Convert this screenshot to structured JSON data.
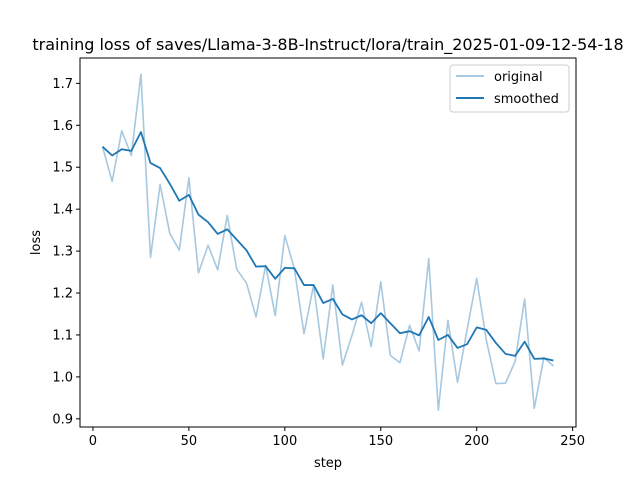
{
  "chart_data": {
    "type": "line",
    "title": "training loss of saves/Llama-3-8B-Instruct/lora/train_2025-01-09-12-54-18",
    "xlabel": "step",
    "ylabel": "loss",
    "xlim": [
      -6.75,
      251.75
    ],
    "ylim": [
      0.8805,
      1.7605
    ],
    "xticks": [
      0,
      50,
      100,
      150,
      200,
      250
    ],
    "yticks": [
      0.9,
      1.0,
      1.1,
      1.2,
      1.3,
      1.4,
      1.5,
      1.6,
      1.7
    ],
    "ytick_labels": [
      "0.9",
      "1.0",
      "1.1",
      "1.2",
      "1.3",
      "1.4",
      "1.5",
      "1.6",
      "1.7"
    ],
    "grid": false,
    "legend": {
      "placement": "upper-right",
      "entries": [
        "original",
        "smoothed"
      ]
    },
    "x": [
      5,
      10,
      15,
      20,
      25,
      30,
      35,
      40,
      45,
      50,
      55,
      60,
      65,
      70,
      75,
      80,
      85,
      90,
      95,
      100,
      105,
      110,
      115,
      120,
      125,
      130,
      135,
      140,
      145,
      150,
      155,
      160,
      165,
      170,
      175,
      180,
      185,
      190,
      195,
      200,
      205,
      210,
      215,
      220,
      225,
      230,
      235,
      240
    ],
    "series": [
      {
        "name": "original",
        "color": "#a6c8e0",
        "values": [
          1.549,
          1.466,
          1.587,
          1.528,
          1.722,
          1.285,
          1.459,
          1.343,
          1.302,
          1.475,
          1.248,
          1.314,
          1.255,
          1.385,
          1.256,
          1.224,
          1.143,
          1.266,
          1.146,
          1.337,
          1.257,
          1.103,
          1.219,
          1.043,
          1.219,
          1.028,
          1.099,
          1.178,
          1.072,
          1.227,
          1.051,
          1.034,
          1.123,
          1.062,
          1.282,
          0.921,
          1.135,
          0.987,
          1.113,
          1.235,
          1.088,
          0.984,
          0.985,
          1.037,
          1.186,
          0.925,
          1.046,
          1.026
        ]
      },
      {
        "name": "smoothed",
        "color": "#1f77b4",
        "values": [
          1.549,
          1.528,
          1.543,
          1.539,
          1.584,
          1.51,
          1.498,
          1.461,
          1.42,
          1.434,
          1.387,
          1.369,
          1.341,
          1.352,
          1.327,
          1.302,
          1.263,
          1.264,
          1.234,
          1.26,
          1.259,
          1.219,
          1.219,
          1.176,
          1.186,
          1.149,
          1.137,
          1.147,
          1.128,
          1.152,
          1.128,
          1.104,
          1.109,
          1.099,
          1.143,
          1.088,
          1.1,
          1.069,
          1.078,
          1.118,
          1.112,
          1.081,
          1.055,
          1.05,
          1.084,
          1.043,
          1.044,
          1.039
        ]
      }
    ]
  }
}
